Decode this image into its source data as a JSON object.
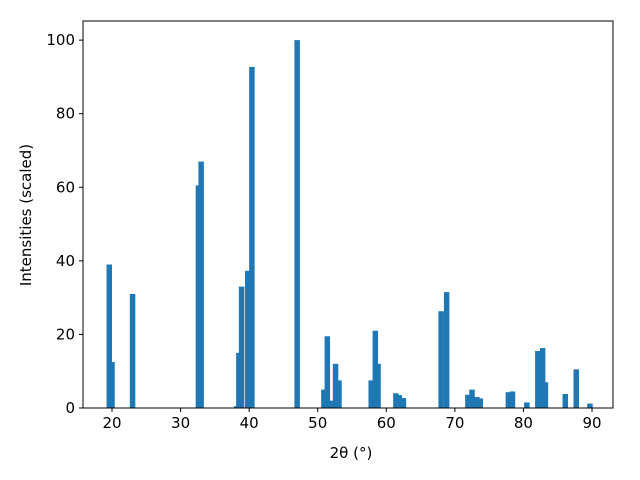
{
  "chart_data": {
    "type": "bar",
    "xlabel": "2θ (°)",
    "ylabel": "Intensities (scaled)",
    "x": [
      19.6,
      20.0,
      23.0,
      32.6,
      33.0,
      38.2,
      38.5,
      38.9,
      39.8,
      40.4,
      47.0,
      50.9,
      51.4,
      51.9,
      52.6,
      53.1,
      57.8,
      58.4,
      58.8,
      61.4,
      61.9,
      62.5,
      68.0,
      68.8,
      71.9,
      72.5,
      73.2,
      73.7,
      77.8,
      78.4,
      80.5,
      82.1,
      82.8,
      83.2,
      86.1,
      87.7,
      89.7
    ],
    "values": [
      39,
      12.5,
      31,
      60.5,
      67,
      0.5,
      15,
      33,
      37.3,
      92.7,
      100,
      5,
      19.5,
      2,
      12,
      7.5,
      7.5,
      21,
      12,
      4,
      3.5,
      2.7,
      26.3,
      31.5,
      3.6,
      5,
      3,
      2.6,
      4.3,
      4.5,
      1.5,
      15.5,
      16.3,
      7,
      3.8,
      10.5,
      1.2
    ],
    "color": "#1f77b4",
    "xlim": [
      15.77,
      93.06
    ],
    "ylim": [
      0,
      105.2
    ],
    "xticks": [
      20,
      30,
      40,
      50,
      60,
      70,
      80,
      90
    ],
    "yticks": [
      0,
      20,
      40,
      60,
      80,
      100
    ]
  }
}
